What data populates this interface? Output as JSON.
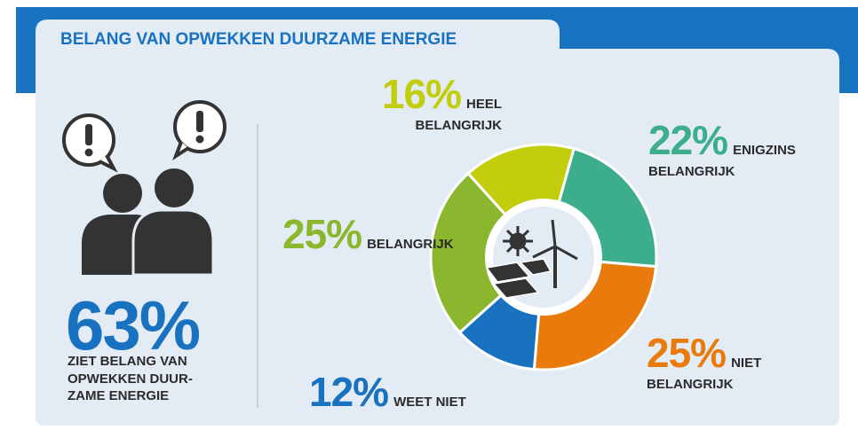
{
  "chart_data": {
    "type": "donut",
    "title": "BELANG VAN OPWEKKEN DUURZAME ENERGIE",
    "highlight": {
      "value_label": "63%",
      "text": "ZIET BELANG VAN OPWEKKEN DUUR-ZAME ENERGIE"
    },
    "categories": [
      "HEEL BELANGRIJK",
      "ENIGZINS BELANGRIJK",
      "NIET BELANGRIJK",
      "WEET NIET",
      "BELANGRIJK"
    ],
    "values": [
      16,
      22,
      25,
      12,
      25
    ],
    "value_labels": [
      "16%",
      "22%",
      "25%",
      "12%",
      "25%"
    ],
    "colors": [
      "#c2cd0b",
      "#3cae8b",
      "#e97b0c",
      "#1872bf",
      "#8bb72e"
    ]
  }
}
